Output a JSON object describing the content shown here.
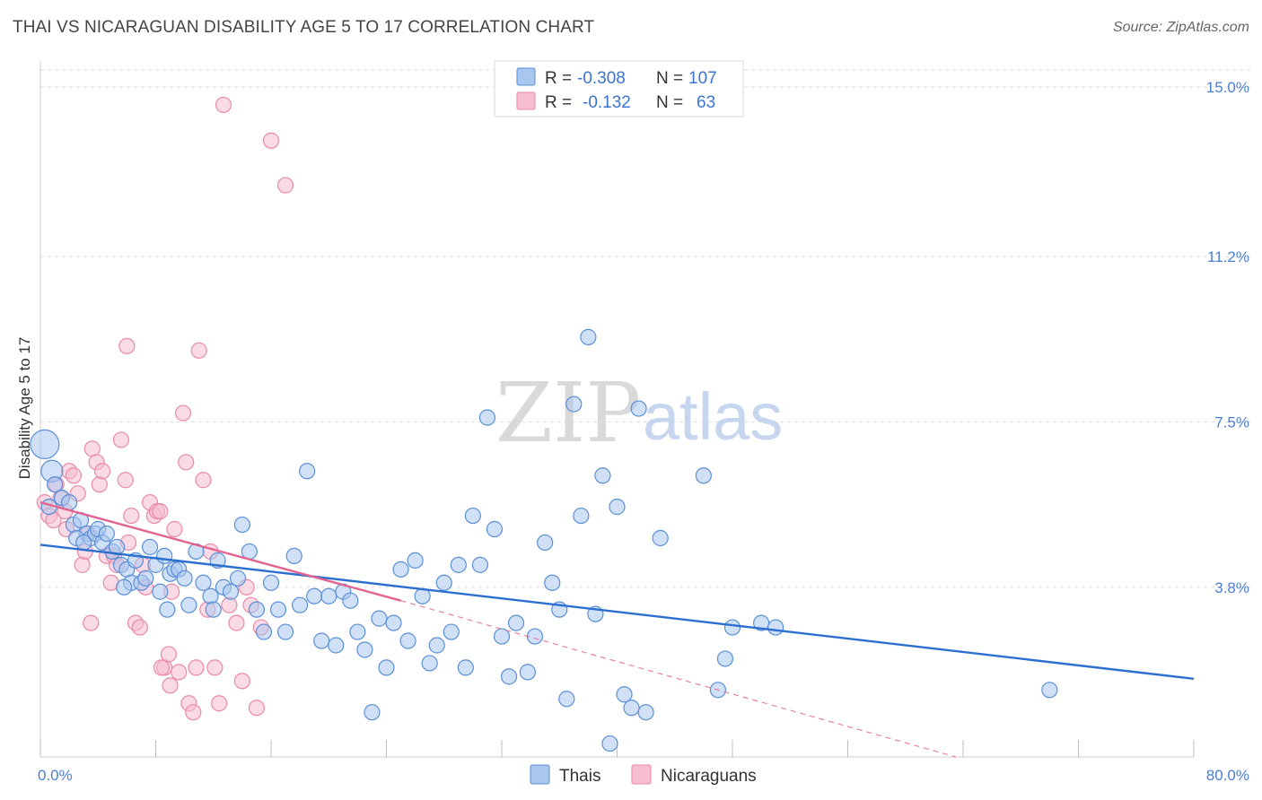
{
  "title": "THAI VS NICARAGUAN DISABILITY AGE 5 TO 17 CORRELATION CHART",
  "source": "Source: ZipAtlas.com",
  "watermark": {
    "zip": "ZIP",
    "atlas": "atlas"
  },
  "colors": {
    "blue_fill": "#a9c6ef",
    "blue_stroke": "#5b8fd6",
    "blue_line": "#2b6fd0",
    "pink_fill": "#f6bcd0",
    "pink_stroke": "#e98aa9",
    "pink_line": "#e4628f",
    "grid": "#dddddd",
    "accent_text": "#4a7fd4"
  },
  "legend": {
    "rows": [
      {
        "r_label": "R =",
        "r_value": "-0.308",
        "n_label": "N =",
        "n_value": "107"
      },
      {
        "r_label": "R =",
        "r_value": "-0.132",
        "n_label": "N =",
        "n_value": "63"
      }
    ],
    "bottom": [
      {
        "label": "Thais"
      },
      {
        "label": "Nicaraguans"
      }
    ]
  },
  "chart_data": {
    "type": "scatter",
    "title": "THAI VS NICARAGUAN DISABILITY AGE 5 TO 17 CORRELATION CHART",
    "xlabel": "",
    "ylabel": "Disability Age 5 to 17",
    "xlim": [
      0,
      80
    ],
    "ylim": [
      0,
      15.5
    ],
    "x_tick_labels": [
      "0.0%",
      "80.0%"
    ],
    "y_ticks": [
      3.8,
      7.5,
      11.2,
      15.0
    ],
    "y_tick_labels": [
      "3.8%",
      "7.5%",
      "11.2%",
      "15.0%"
    ],
    "grid": true,
    "series": [
      {
        "name": "Thais",
        "R": -0.308,
        "N": 107,
        "trend": {
          "x": [
            0,
            80
          ],
          "y": [
            4.75,
            1.75
          ],
          "style": "solid"
        },
        "points": [
          [
            0.3,
            7.0
          ],
          [
            0.8,
            6.4
          ],
          [
            1.0,
            6.1
          ],
          [
            1.5,
            5.8
          ],
          [
            2.0,
            5.7
          ],
          [
            2.3,
            5.2
          ],
          [
            2.8,
            5.3
          ],
          [
            3.2,
            5.0
          ],
          [
            3.5,
            4.9
          ],
          [
            3.8,
            5.0
          ],
          [
            4.0,
            5.1
          ],
          [
            4.3,
            4.8
          ],
          [
            4.6,
            5.0
          ],
          [
            5.0,
            4.6
          ],
          [
            5.3,
            4.7
          ],
          [
            5.6,
            4.3
          ],
          [
            6.0,
            4.2
          ],
          [
            6.3,
            3.9
          ],
          [
            6.6,
            4.4
          ],
          [
            7.0,
            3.9
          ],
          [
            7.3,
            4.0
          ],
          [
            7.6,
            4.7
          ],
          [
            8.0,
            4.3
          ],
          [
            8.3,
            3.7
          ],
          [
            8.6,
            4.5
          ],
          [
            9.0,
            4.1
          ],
          [
            9.3,
            4.2
          ],
          [
            9.6,
            4.2
          ],
          [
            10.0,
            4.0
          ],
          [
            10.3,
            3.4
          ],
          [
            10.8,
            4.6
          ],
          [
            11.3,
            3.9
          ],
          [
            11.8,
            3.6
          ],
          [
            12.3,
            4.4
          ],
          [
            12.7,
            3.8
          ],
          [
            13.2,
            3.7
          ],
          [
            13.7,
            4.0
          ],
          [
            14.0,
            5.2
          ],
          [
            14.5,
            4.6
          ],
          [
            15.0,
            3.3
          ],
          [
            15.5,
            2.8
          ],
          [
            16.0,
            3.9
          ],
          [
            16.5,
            3.3
          ],
          [
            17.0,
            2.8
          ],
          [
            17.6,
            4.5
          ],
          [
            18.0,
            3.4
          ],
          [
            18.5,
            6.4
          ],
          [
            19.0,
            3.6
          ],
          [
            19.5,
            2.6
          ],
          [
            20.0,
            3.6
          ],
          [
            20.5,
            2.5
          ],
          [
            21.0,
            3.7
          ],
          [
            21.5,
            3.5
          ],
          [
            22.0,
            2.8
          ],
          [
            22.5,
            2.4
          ],
          [
            23.0,
            1.0
          ],
          [
            23.5,
            3.1
          ],
          [
            24.0,
            2.0
          ],
          [
            24.5,
            3.0
          ],
          [
            25.0,
            4.2
          ],
          [
            25.5,
            2.6
          ],
          [
            26.0,
            4.4
          ],
          [
            26.5,
            3.6
          ],
          [
            27.0,
            2.1
          ],
          [
            27.5,
            2.5
          ],
          [
            28.0,
            3.9
          ],
          [
            28.5,
            2.8
          ],
          [
            29.0,
            4.3
          ],
          [
            29.5,
            2.0
          ],
          [
            30.0,
            5.4
          ],
          [
            30.5,
            4.3
          ],
          [
            31.0,
            7.6
          ],
          [
            31.5,
            5.1
          ],
          [
            32.0,
            2.7
          ],
          [
            32.5,
            1.8
          ],
          [
            33.0,
            3.0
          ],
          [
            33.8,
            1.9
          ],
          [
            34.3,
            2.7
          ],
          [
            35.0,
            4.8
          ],
          [
            35.5,
            3.9
          ],
          [
            36.0,
            3.3
          ],
          [
            36.5,
            1.3
          ],
          [
            37.0,
            7.9
          ],
          [
            37.5,
            5.4
          ],
          [
            38.0,
            9.4
          ],
          [
            38.5,
            3.2
          ],
          [
            39.0,
            6.3
          ],
          [
            39.5,
            0.3
          ],
          [
            40.0,
            5.6
          ],
          [
            40.5,
            1.4
          ],
          [
            41.0,
            1.1
          ],
          [
            41.5,
            7.8
          ],
          [
            42.0,
            1.0
          ],
          [
            43.0,
            4.9
          ],
          [
            46.0,
            6.3
          ],
          [
            47.0,
            1.5
          ],
          [
            47.5,
            2.2
          ],
          [
            48.0,
            2.9
          ],
          [
            50.0,
            3.0
          ],
          [
            51.0,
            2.9
          ],
          [
            70.0,
            1.5
          ],
          [
            0.6,
            5.6
          ],
          [
            2.5,
            4.9
          ],
          [
            3.0,
            4.8
          ],
          [
            5.8,
            3.8
          ],
          [
            8.8,
            3.3
          ],
          [
            12.0,
            3.3
          ]
        ]
      },
      {
        "name": "Nicaraguans",
        "R": -0.132,
        "N": 63,
        "trend": {
          "x": [
            0,
            25,
            80
          ],
          "y": [
            5.7,
            3.5,
            -1.5
          ],
          "style": "solid-then-dashed",
          "solid_until": 25
        },
        "points": [
          [
            0.3,
            5.7
          ],
          [
            0.6,
            5.4
          ],
          [
            0.9,
            5.3
          ],
          [
            1.1,
            6.1
          ],
          [
            1.4,
            5.8
          ],
          [
            1.7,
            5.5
          ],
          [
            2.0,
            6.4
          ],
          [
            2.3,
            6.3
          ],
          [
            2.6,
            5.9
          ],
          [
            2.9,
            4.3
          ],
          [
            3.1,
            4.6
          ],
          [
            3.3,
            5.0
          ],
          [
            3.6,
            6.9
          ],
          [
            3.9,
            6.6
          ],
          [
            4.1,
            6.1
          ],
          [
            4.3,
            6.4
          ],
          [
            4.6,
            4.5
          ],
          [
            4.9,
            3.9
          ],
          [
            5.1,
            4.5
          ],
          [
            5.3,
            4.3
          ],
          [
            5.6,
            7.1
          ],
          [
            5.9,
            6.2
          ],
          [
            6.1,
            4.8
          ],
          [
            6.3,
            5.4
          ],
          [
            6.6,
            3.0
          ],
          [
            6.9,
            2.9
          ],
          [
            7.1,
            4.3
          ],
          [
            7.3,
            3.8
          ],
          [
            7.6,
            5.7
          ],
          [
            7.9,
            5.4
          ],
          [
            8.1,
            5.5
          ],
          [
            8.3,
            5.5
          ],
          [
            8.6,
            2.0
          ],
          [
            8.9,
            2.3
          ],
          [
            9.1,
            3.7
          ],
          [
            9.3,
            5.1
          ],
          [
            9.6,
            1.9
          ],
          [
            9.9,
            7.7
          ],
          [
            10.1,
            6.6
          ],
          [
            10.3,
            1.2
          ],
          [
            10.6,
            1.0
          ],
          [
            10.8,
            2.0
          ],
          [
            11.0,
            9.1
          ],
          [
            11.3,
            6.2
          ],
          [
            11.6,
            3.3
          ],
          [
            11.8,
            4.6
          ],
          [
            12.1,
            2.0
          ],
          [
            12.4,
            1.2
          ],
          [
            12.7,
            14.6
          ],
          [
            13.1,
            3.4
          ],
          [
            13.6,
            3.0
          ],
          [
            14.0,
            1.7
          ],
          [
            14.3,
            3.8
          ],
          [
            14.6,
            3.4
          ],
          [
            15.0,
            1.1
          ],
          [
            15.3,
            2.9
          ],
          [
            16.0,
            13.8
          ],
          [
            17.0,
            12.8
          ],
          [
            3.5,
            3.0
          ],
          [
            6.0,
            9.2
          ],
          [
            1.8,
            5.1
          ],
          [
            8.4,
            2.0
          ],
          [
            9.0,
            1.6
          ]
        ]
      }
    ]
  }
}
